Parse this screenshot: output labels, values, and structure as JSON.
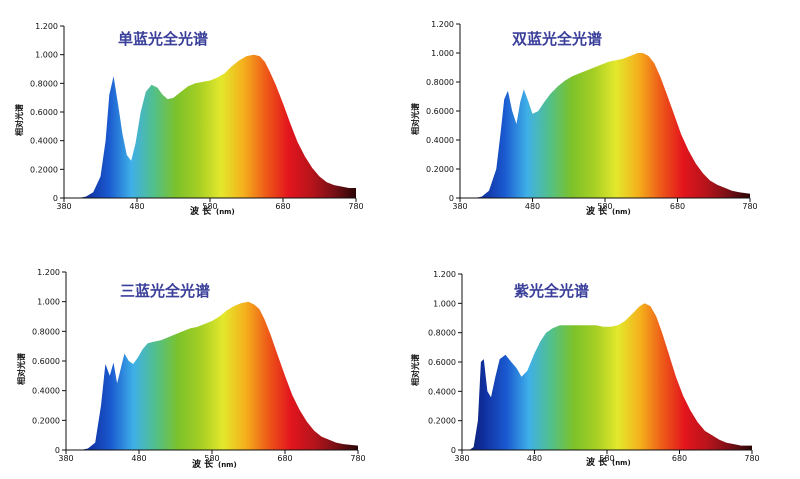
{
  "spectrum_colors": [
    "#0a1a5c",
    "#1030a0",
    "#1a5ad0",
    "#3fb0e8",
    "#52c08a",
    "#7cc22a",
    "#a6cf24",
    "#e3e82c",
    "#f5b01c",
    "#ee5a18",
    "#e3151d",
    "#b8141b",
    "#7a1016",
    "#2a0606"
  ],
  "chart_data": [
    {
      "type": "area",
      "title": "单蓝光全光谱",
      "xlabel": "波 长",
      "xunit": "(nm)",
      "ylabel": "相对光谱",
      "xlim": [
        380,
        780
      ],
      "ylim": [
        0,
        1.2
      ],
      "xticks": [
        "380",
        "480",
        "580",
        "680",
        "780"
      ],
      "yticks": [
        "0",
        "0.2000",
        "0.4000",
        "0.6000",
        "0.8000",
        "1.000",
        "1.200"
      ],
      "x": [
        380,
        400,
        410,
        420,
        430,
        437,
        442,
        448,
        455,
        460,
        466,
        472,
        478,
        485,
        492,
        500,
        508,
        515,
        522,
        530,
        540,
        550,
        560,
        570,
        580,
        590,
        600,
        610,
        620,
        630,
        640,
        648,
        655,
        662,
        670,
        680,
        690,
        700,
        710,
        720,
        730,
        740,
        750,
        760,
        770,
        780
      ],
      "y": [
        0.0,
        0.0,
        0.01,
        0.04,
        0.15,
        0.4,
        0.72,
        0.85,
        0.62,
        0.45,
        0.3,
        0.26,
        0.38,
        0.6,
        0.74,
        0.79,
        0.77,
        0.72,
        0.69,
        0.7,
        0.74,
        0.78,
        0.8,
        0.81,
        0.82,
        0.84,
        0.87,
        0.92,
        0.96,
        0.99,
        1.0,
        0.99,
        0.95,
        0.88,
        0.79,
        0.66,
        0.52,
        0.39,
        0.29,
        0.21,
        0.15,
        0.11,
        0.09,
        0.08,
        0.07,
        0.07
      ]
    },
    {
      "type": "area",
      "title": "双蓝光全光谱",
      "xlabel": "波 长",
      "xunit": "(nm)",
      "ylabel": "相对光谱",
      "xlim": [
        380,
        780
      ],
      "ylim": [
        0,
        1.2
      ],
      "xticks": [
        "380",
        "480",
        "580",
        "680",
        "780"
      ],
      "yticks": [
        "0",
        "0.2000",
        "0.4000",
        "0.6000",
        "0.8000",
        "1.000",
        "1.200"
      ],
      "x": [
        380,
        400,
        410,
        420,
        430,
        436,
        441,
        446,
        452,
        458,
        463,
        468,
        474,
        480,
        488,
        496,
        505,
        515,
        525,
        535,
        545,
        555,
        565,
        575,
        585,
        595,
        605,
        615,
        625,
        632,
        640,
        648,
        656,
        665,
        675,
        685,
        695,
        705,
        715,
        725,
        735,
        745,
        755,
        765,
        780
      ],
      "y": [
        0.0,
        0.0,
        0.01,
        0.05,
        0.2,
        0.45,
        0.68,
        0.74,
        0.6,
        0.51,
        0.66,
        0.75,
        0.67,
        0.58,
        0.6,
        0.66,
        0.72,
        0.77,
        0.81,
        0.84,
        0.86,
        0.88,
        0.9,
        0.92,
        0.94,
        0.95,
        0.96,
        0.98,
        1.0,
        1.0,
        0.98,
        0.93,
        0.84,
        0.72,
        0.58,
        0.44,
        0.33,
        0.24,
        0.17,
        0.12,
        0.09,
        0.07,
        0.05,
        0.04,
        0.03
      ]
    },
    {
      "type": "area",
      "title": "三蓝光全光谱",
      "xlabel": "波 长",
      "xunit": "(nm)",
      "ylabel": "相对光谱",
      "xlim": [
        380,
        780
      ],
      "ylim": [
        0,
        1.2
      ],
      "xticks": [
        "380",
        "480",
        "580",
        "680",
        "780"
      ],
      "yticks": [
        "0",
        "0.2000",
        "0.4000",
        "0.6000",
        "0.8000",
        "1.000",
        "1.200"
      ],
      "x": [
        380,
        400,
        410,
        420,
        428,
        434,
        440,
        445,
        450,
        455,
        460,
        466,
        472,
        478,
        485,
        492,
        500,
        510,
        520,
        530,
        540,
        550,
        560,
        570,
        580,
        590,
        600,
        610,
        620,
        630,
        638,
        645,
        652,
        660,
        670,
        680,
        690,
        700,
        710,
        720,
        730,
        740,
        750,
        760,
        780
      ],
      "y": [
        0.0,
        0.0,
        0.01,
        0.05,
        0.3,
        0.58,
        0.5,
        0.59,
        0.45,
        0.55,
        0.65,
        0.6,
        0.58,
        0.62,
        0.68,
        0.72,
        0.73,
        0.74,
        0.76,
        0.78,
        0.8,
        0.82,
        0.83,
        0.85,
        0.87,
        0.9,
        0.94,
        0.97,
        0.99,
        1.0,
        0.98,
        0.95,
        0.88,
        0.78,
        0.64,
        0.5,
        0.37,
        0.27,
        0.19,
        0.13,
        0.09,
        0.07,
        0.05,
        0.04,
        0.03
      ]
    },
    {
      "type": "area",
      "title": "紫光全光谱",
      "xlabel": "波 长",
      "xunit": "(nm)",
      "ylabel": "相对光谱",
      "xlim": [
        380,
        780
      ],
      "ylim": [
        0,
        1.2
      ],
      "xticks": [
        "380",
        "480",
        "580",
        "680",
        "780"
      ],
      "yticks": [
        "0",
        "0.2000",
        "0.4000",
        "0.6000",
        "0.8000",
        "1.000",
        "1.200"
      ],
      "x": [
        380,
        390,
        396,
        402,
        406,
        410,
        415,
        420,
        426,
        432,
        440,
        448,
        455,
        462,
        470,
        480,
        488,
        496,
        505,
        515,
        525,
        535,
        545,
        555,
        565,
        575,
        585,
        595,
        605,
        615,
        625,
        632,
        640,
        648,
        656,
        665,
        675,
        685,
        695,
        705,
        715,
        725,
        735,
        745,
        755,
        765,
        780
      ],
      "y": [
        0.0,
        0.0,
        0.02,
        0.2,
        0.6,
        0.62,
        0.4,
        0.36,
        0.5,
        0.62,
        0.65,
        0.6,
        0.56,
        0.5,
        0.54,
        0.66,
        0.74,
        0.8,
        0.83,
        0.85,
        0.85,
        0.85,
        0.85,
        0.85,
        0.85,
        0.84,
        0.84,
        0.85,
        0.88,
        0.93,
        0.98,
        1.0,
        0.98,
        0.91,
        0.8,
        0.66,
        0.5,
        0.37,
        0.27,
        0.19,
        0.13,
        0.1,
        0.07,
        0.05,
        0.04,
        0.03,
        0.03
      ]
    }
  ]
}
